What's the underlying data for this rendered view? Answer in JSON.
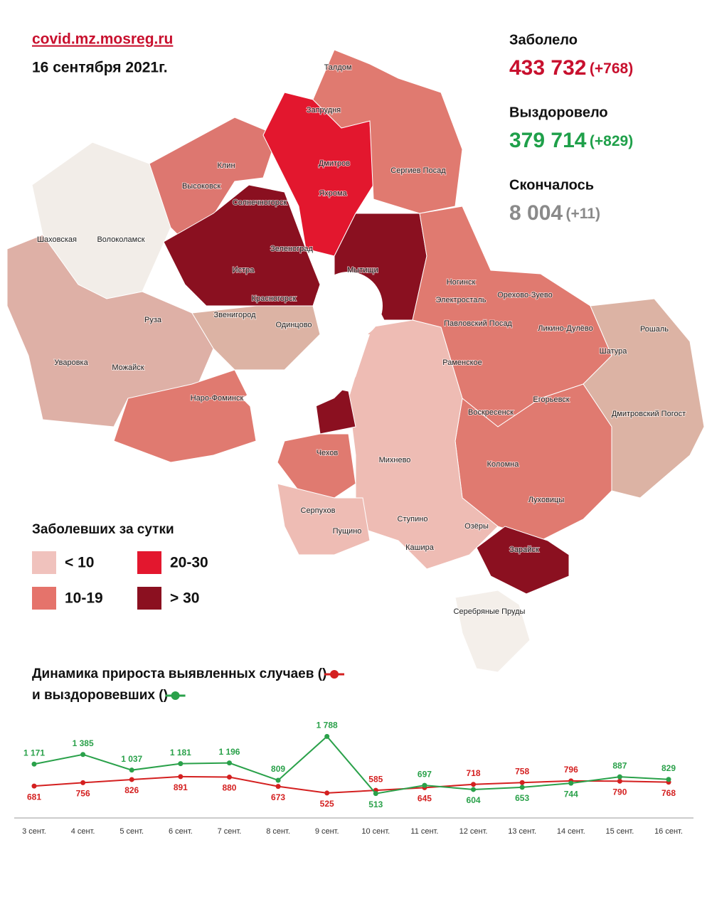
{
  "header": {
    "site": "covid.mz.mosreg.ru",
    "date": "16 сентября 2021г."
  },
  "stats": [
    {
      "label": "Заболело",
      "value": "433 732",
      "delta": "(+768)",
      "color": "#c8102e"
    },
    {
      "label": "Выздоровело",
      "value": "379 714",
      "delta": "(+829)",
      "color": "#1fa04a"
    },
    {
      "label": "Скончалось",
      "value": "8 004",
      "delta": "(+11)",
      "color": "#8a8a8a"
    }
  ],
  "map": {
    "labels": [
      "Талдом",
      "Запрудня",
      "Клин",
      "Дмитров",
      "Сергиев Посад",
      "Высоковск",
      "Яхрома",
      "Солнечногорск",
      "Шаховская",
      "Волоколамск",
      "Зеленоград",
      "Истра",
      "Мытищи",
      "Ногинск",
      "Орехово-Зуево",
      "Красногорск",
      "Электросталь",
      "Павловский Посад",
      "Ликино-Дулёво",
      "Руза",
      "Звенигород",
      "Одинцово",
      "Рошаль",
      "Шатура",
      "Уваровка",
      "Можайск",
      "Раменское",
      "Наро-Фоминск",
      "Егорьевск",
      "Воскресенск",
      "Дмитровский Погост",
      "Чехов",
      "Михнево",
      "Коломна",
      "Луховицы",
      "Серпухов",
      "Пущино",
      "Ступино",
      "Озёры",
      "Зарайск",
      "Кашира",
      "Серебряные Пруды"
    ]
  },
  "legend": {
    "title": "Заболевших за сутки",
    "items": [
      {
        "label": "< 10",
        "color": "#f0c2bd"
      },
      {
        "label": "20-30",
        "color": "#e3172e"
      },
      {
        "label": "10-19",
        "color": "#e5736b"
      },
      {
        "label": "> 30",
        "color": "#8b1020"
      }
    ]
  },
  "chart_data": {
    "type": "line",
    "title_lines": [
      {
        "before": "Динамика прироста выявленных случаев (",
        "after": ")"
      },
      {
        "before": "и выздоровевших (",
        "after": ")"
      }
    ],
    "categories": [
      "3 сент.",
      "4 сент.",
      "5 сент.",
      "6 сент.",
      "7 сент.",
      "8 сент.",
      "9 сент.",
      "10 сент.",
      "11 сент.",
      "12 сент.",
      "13 сент.",
      "14 сент.",
      "15 сент.",
      "16 сент."
    ],
    "series": [
      {
        "color": "#d42020",
        "values": [
          681,
          756,
          826,
          891,
          880,
          673,
          525,
          585,
          645,
          718,
          758,
          796,
          790,
          768
        ]
      },
      {
        "color": "#2aa14a",
        "values": [
          1171,
          1385,
          1037,
          1181,
          1196,
          809,
          1788,
          513,
          697,
          604,
          653,
          744,
          887,
          829
        ],
        "value_labels": [
          "1 171",
          "1 385",
          "1 037",
          "1 181",
          "1 196",
          "809",
          "1 788",
          "513",
          "697",
          "604",
          "653",
          "744",
          "887",
          "829"
        ]
      }
    ],
    "ylim": [
      0,
      2000
    ]
  }
}
